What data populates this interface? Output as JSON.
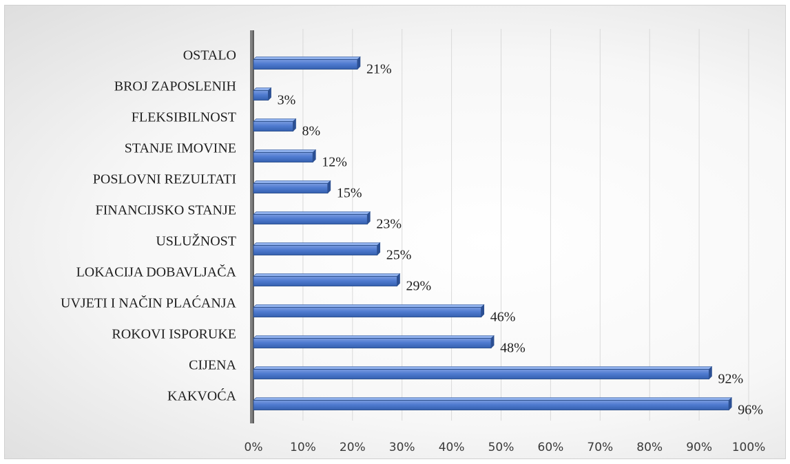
{
  "chart_data": {
    "type": "bar",
    "orientation": "horizontal",
    "categories": [
      "KAKVOĆA",
      "CIJENA",
      "ROKOVI ISPORUKE",
      "UVJETI I NAČIN PLAĆANJA",
      "LOKACIJA DOBAVLJAČA",
      "USLUŽNOST",
      "FINANCIJSKO STANJE",
      "POSLOVNI REZULTATI",
      "STANJE IMOVINE",
      "FLEKSIBILNOST",
      "BROJ ZAPOSLENIH",
      "OSTALO"
    ],
    "values": [
      96,
      92,
      48,
      46,
      29,
      25,
      23,
      15,
      12,
      8,
      3,
      21
    ],
    "value_labels": [
      "96%",
      "92%",
      "48%",
      "46%",
      "29%",
      "25%",
      "23%",
      "15%",
      "12%",
      "8%",
      "3%",
      "21%"
    ],
    "xlim": [
      0,
      100
    ],
    "xticks": [
      0,
      10,
      20,
      30,
      40,
      50,
      60,
      70,
      80,
      90,
      100
    ],
    "xtick_labels": [
      "0%",
      "10%",
      "20%",
      "30%",
      "40%",
      "50%",
      "60%",
      "70%",
      "80%",
      "90%",
      "100%"
    ],
    "grid": true,
    "legend": "none",
    "bar_color": "#4472c4",
    "bar_edge_color": "#2f528f",
    "gridline_color": "#d9d9d9",
    "axis_color": "#404040",
    "title": "",
    "xlabel": "",
    "ylabel": ""
  }
}
